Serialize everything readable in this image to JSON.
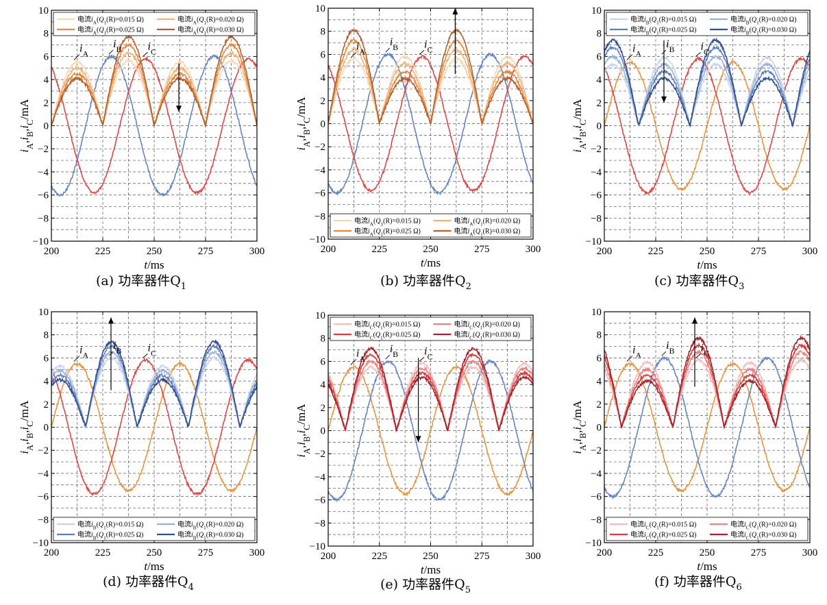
{
  "figure": {
    "xlabel": "t/ms",
    "ylabel": "iA,iB,iC/mA",
    "xticks": [
      200,
      225,
      250,
      275,
      300
    ],
    "yticks": [
      -10,
      -8,
      -6,
      -4,
      -2,
      0,
      2,
      4,
      6,
      8,
      10
    ],
    "colors": {
      "A": [
        "#f7d7b4",
        "#efb37a",
        "#e6883c",
        "#b35f2c"
      ],
      "B": [
        "#c8d4ea",
        "#98afd8",
        "#5e7fbd",
        "#2f4f93"
      ],
      "C": [
        "#f5bcbc",
        "#ea8080",
        "#d93a3a",
        "#a3232c"
      ],
      "A_base": "#e8943e",
      "B_base": "#6485c4",
      "C_base": "#e04545"
    }
  },
  "chart_data": [
    {
      "type": "line",
      "panel": "a",
      "caption_prefix": "(a) 功率器件Q",
      "caption_sub": "1",
      "xlim": [
        200,
        300
      ],
      "ylim": [
        -10,
        10
      ],
      "varied_phase": "A",
      "legend_position": "top",
      "legend": [
        "电流iA(Q1(R)=0.015 Ω)",
        "电流iA(Q1(R)=0.020 Ω)",
        "电流iA(Q1(R)=0.025 Ω)",
        "电流iA(Q1(R)=0.030 Ω)"
      ],
      "annotations": [
        "iA",
        "iB",
        "iC"
      ],
      "base": {
        "A": {
          "amplitude": 5.5,
          "phase_deg": 0
        },
        "B": {
          "amplitude": 6.0,
          "phase_deg": -120
        },
        "C": {
          "amplitude": 5.8,
          "phase_deg": 120
        }
      },
      "series": [
        {
          "phase": "A",
          "R_ohm": 0.015,
          "pos_peak": 5.5,
          "neg_peak": -5.6
        },
        {
          "phase": "A",
          "R_ohm": 0.02,
          "pos_peak": 5.0,
          "neg_peak": -6.3
        },
        {
          "phase": "A",
          "R_ohm": 0.025,
          "pos_peak": 4.5,
          "neg_peak": -7.0
        },
        {
          "phase": "A",
          "R_ohm": 0.03,
          "pos_peak": 4.1,
          "neg_peak": -7.7
        }
      ],
      "arrow": {
        "x": 262,
        "from_y": 5.4,
        "to_y": 1.2
      }
    },
    {
      "type": "line",
      "panel": "b",
      "caption_prefix": "(b) 功率器件Q",
      "caption_sub": "2",
      "xlim": [
        200,
        300
      ],
      "ylim": [
        -10,
        10
      ],
      "varied_phase": "A",
      "legend_position": "bottom",
      "legend": [
        "电流iA(Q1(R)=0.015 Ω)",
        "电流iA(Q1(R)=0.020 Ω)",
        "电流iA(Q1(R)=0.025 Ω)",
        "电流iA(Q1(R)=0.030 Ω)"
      ],
      "annotations": [
        "iA",
        "iB",
        "iC"
      ],
      "base": {
        "A": {
          "amplitude": 5.5,
          "phase_deg": 0
        },
        "B": {
          "amplitude": 6.0,
          "phase_deg": -120
        },
        "C": {
          "amplitude": 5.8,
          "phase_deg": 120
        }
      },
      "series": [
        {
          "phase": "A",
          "R_ohm": 0.015,
          "pos_peak": 5.6,
          "neg_peak": -5.8
        },
        {
          "phase": "A",
          "R_ohm": 0.02,
          "pos_peak": 6.4,
          "neg_peak": -5.2
        },
        {
          "phase": "A",
          "R_ohm": 0.025,
          "pos_peak": 7.2,
          "neg_peak": -4.5
        },
        {
          "phase": "A",
          "R_ohm": 0.03,
          "pos_peak": 8.1,
          "neg_peak": -3.9
        }
      ],
      "arrow": {
        "x": 262,
        "from_y": 4.3,
        "to_y": 10.0
      }
    },
    {
      "type": "line",
      "panel": "c",
      "caption_prefix": "(c) 功率器件Q",
      "caption_sub": "3",
      "xlim": [
        200,
        300
      ],
      "ylim": [
        -10,
        10
      ],
      "varied_phase": "B",
      "legend_position": "top",
      "legend": [
        "电流iB(Q1(R)=0.015 Ω)",
        "电流iB(Q1(R)=0.020 Ω)",
        "电流iB(Q1(R)=0.025 Ω)",
        "电流iB(Q1(R)=0.030 Ω)"
      ],
      "annotations": [
        "iA",
        "iB",
        "iC"
      ],
      "base": {
        "A": {
          "amplitude": 5.5,
          "phase_deg": 0
        },
        "B": {
          "amplitude": 6.0,
          "phase_deg": -120
        },
        "C": {
          "amplitude": 5.8,
          "phase_deg": 120
        }
      },
      "series": [
        {
          "phase": "B",
          "R_ohm": 0.015,
          "pos_peak": 5.9,
          "neg_peak": -5.3
        },
        {
          "phase": "B",
          "R_ohm": 0.02,
          "pos_peak": 5.3,
          "neg_peak": -6.0
        },
        {
          "phase": "B",
          "R_ohm": 0.025,
          "pos_peak": 4.7,
          "neg_peak": -6.8
        },
        {
          "phase": "B",
          "R_ohm": 0.03,
          "pos_peak": 4.1,
          "neg_peak": -7.4
        }
      ],
      "arrow": {
        "x": 229,
        "from_y": 7.4,
        "to_y": 2.0
      }
    },
    {
      "type": "line",
      "panel": "d",
      "caption_prefix": "(d) 功率器件Q",
      "caption_sub": "4",
      "xlim": [
        200,
        300
      ],
      "ylim": [
        -10,
        10
      ],
      "varied_phase": "B",
      "legend_position": "bottom",
      "legend": [
        "电流iB(Q1(R)=0.015 Ω)",
        "电流iB(Q1(R)=0.020 Ω)",
        "电流iB(Q1(R)=0.025 Ω)",
        "电流iB(Q1(R)=0.030 Ω)"
      ],
      "annotations": [
        "iA",
        "iB",
        "iC"
      ],
      "base": {
        "A": {
          "amplitude": 5.5,
          "phase_deg": 0
        },
        "B": {
          "amplitude": 6.0,
          "phase_deg": -120
        },
        "C": {
          "amplitude": 5.8,
          "phase_deg": 120
        }
      },
      "series": [
        {
          "phase": "B",
          "R_ohm": 0.015,
          "pos_peak": 6.0,
          "neg_peak": -5.3
        },
        {
          "phase": "B",
          "R_ohm": 0.02,
          "pos_peak": 6.5,
          "neg_peak": -4.9
        },
        {
          "phase": "B",
          "R_ohm": 0.025,
          "pos_peak": 7.0,
          "neg_peak": -4.5
        },
        {
          "phase": "B",
          "R_ohm": 0.03,
          "pos_peak": 7.4,
          "neg_peak": -4.1
        }
      ],
      "arrow": {
        "x": 229,
        "from_y": 3.2,
        "to_y": 9.5
      }
    },
    {
      "type": "line",
      "panel": "e",
      "caption_prefix": "(e) 功率器件Q",
      "caption_sub": "5",
      "xlim": [
        200,
        300
      ],
      "ylim": [
        -10,
        10
      ],
      "varied_phase": "C",
      "legend_position": "top",
      "legend": [
        "电流iC(Q1(R)=0.015 Ω)",
        "电流iC(Q1(R)=0.020 Ω)",
        "电流iC(Q1(R)=0.025 Ω)",
        "电流iC(Q1(R)=0.030 Ω)"
      ],
      "annotations": [
        "iA",
        "iB",
        "iC"
      ],
      "base": {
        "A": {
          "amplitude": 5.5,
          "phase_deg": 0
        },
        "B": {
          "amplitude": 6.0,
          "phase_deg": -120
        },
        "C": {
          "amplitude": 5.8,
          "phase_deg": 120
        }
      },
      "series": [
        {
          "phase": "C",
          "R_ohm": 0.015,
          "pos_peak": 5.8,
          "neg_peak": -5.5
        },
        {
          "phase": "C",
          "R_ohm": 0.02,
          "pos_peak": 5.4,
          "neg_peak": -6.0
        },
        {
          "phase": "C",
          "R_ohm": 0.025,
          "pos_peak": 5.0,
          "neg_peak": -6.6
        },
        {
          "phase": "C",
          "R_ohm": 0.03,
          "pos_peak": 4.6,
          "neg_peak": -7.1
        }
      ],
      "arrow": {
        "x": 244,
        "from_y": 6.3,
        "to_y": -1.0
      }
    },
    {
      "type": "line",
      "panel": "f",
      "caption_prefix": "(f) 功率器件Q",
      "caption_sub": "6",
      "xlim": [
        200,
        300
      ],
      "ylim": [
        -10,
        10
      ],
      "varied_phase": "C",
      "legend_position": "bottom",
      "legend": [
        "电流iC(Q1(R)=0.015 Ω)",
        "电流iC(Q1(R)=0.020 Ω)",
        "电流iC(Q1(R)=0.025 Ω)",
        "电流iC(Q1(R)=0.030 Ω)"
      ],
      "annotations": [
        "iA",
        "iB",
        "iC"
      ],
      "base": {
        "A": {
          "amplitude": 5.5,
          "phase_deg": 0
        },
        "B": {
          "amplitude": 6.0,
          "phase_deg": -120
        },
        "C": {
          "amplitude": 5.8,
          "phase_deg": 120
        }
      },
      "series": [
        {
          "phase": "C",
          "R_ohm": 0.015,
          "pos_peak": 5.8,
          "neg_peak": -5.6
        },
        {
          "phase": "C",
          "R_ohm": 0.02,
          "pos_peak": 6.5,
          "neg_peak": -5.0
        },
        {
          "phase": "C",
          "R_ohm": 0.025,
          "pos_peak": 7.1,
          "neg_peak": -4.5
        },
        {
          "phase": "C",
          "R_ohm": 0.03,
          "pos_peak": 7.7,
          "neg_peak": -4.0
        }
      ],
      "arrow": {
        "x": 244,
        "from_y": 3.5,
        "to_y": 9.5
      }
    }
  ]
}
